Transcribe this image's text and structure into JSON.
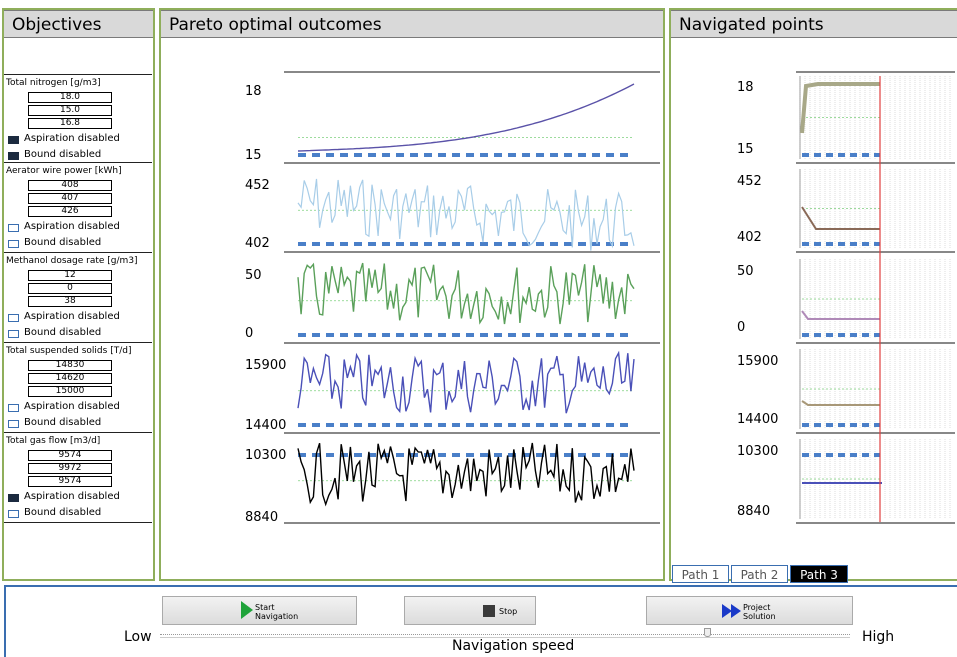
{
  "objectives_panel": {
    "title": "Objectives",
    "objectives": [
      {
        "name": "Total nitrogen [g/m3]",
        "values": [
          "18.0",
          "15.0",
          "16.8"
        ],
        "aspiration": "Aspiration disabled",
        "aspiration_checked": true,
        "bound": "Bound disabled",
        "bound_checked": true
      },
      {
        "name": "Aerator wire power [kWh]",
        "values": [
          "408",
          "407",
          "426"
        ],
        "aspiration": "Aspiration disabled",
        "aspiration_checked": false,
        "bound": "Bound disabled",
        "bound_checked": false
      },
      {
        "name": "Methanol dosage rate [g/m3]",
        "values": [
          "12",
          "0",
          "38"
        ],
        "aspiration": "Aspiration disabled",
        "aspiration_checked": false,
        "bound": "Bound disabled",
        "bound_checked": false
      },
      {
        "name": "Total suspended solids [T/d]",
        "values": [
          "14830",
          "14620",
          "15000"
        ],
        "aspiration": "Aspiration disabled",
        "aspiration_checked": false,
        "bound": "Bound disabled",
        "bound_checked": false
      },
      {
        "name": "Total gas flow [m3/d]",
        "values": [
          "9574",
          "9972",
          "9574"
        ],
        "aspiration": "Aspiration disabled",
        "aspiration_checked": true,
        "bound": "Bound disabled",
        "bound_checked": false
      }
    ]
  },
  "pareto_panel": {
    "title": "Pareto optimal outcomes",
    "rows": [
      {
        "top": "18",
        "bottom": "15",
        "color": "#5a52a8",
        "style": "rising"
      },
      {
        "top": "452",
        "bottom": "402",
        "color": "#a8cde8",
        "style": "noisy"
      },
      {
        "top": "50",
        "bottom": "0",
        "color": "#5aa05a",
        "style": "noisy"
      },
      {
        "top": "15900",
        "bottom": "14400",
        "color": "#4a50b8",
        "style": "noisy"
      },
      {
        "top": "10300",
        "bottom": "8840",
        "color": "#000000",
        "style": "noisy"
      }
    ]
  },
  "navigated_panel": {
    "title": "Navigated points",
    "rows": [
      {
        "top": "18",
        "bottom": "15",
        "color": "#a8a888"
      },
      {
        "top": "452",
        "bottom": "402",
        "color": "#8a6a58"
      },
      {
        "top": "50",
        "bottom": "0",
        "color": "#b08ab8"
      },
      {
        "top": "15900",
        "bottom": "14400",
        "color": "#a89878"
      },
      {
        "top": "10300",
        "bottom": "8840",
        "color": "#4a50b8"
      }
    ],
    "tabs": [
      "Path 1",
      "Path 2",
      "Path 3"
    ],
    "active_tab": "Path 3"
  },
  "controls": {
    "start_label_1": "Start",
    "start_label_2": "Navigation",
    "stop_label": "Stop",
    "project_label_1": "Project",
    "project_label_2": "Solution",
    "low_label": "Low",
    "high_label": "High",
    "speed_label": "Navigation speed"
  },
  "colors": {
    "panel_border": "#8fae5b",
    "dashed_blue": "#4a7fc8",
    "red_marker": "#e04040"
  }
}
